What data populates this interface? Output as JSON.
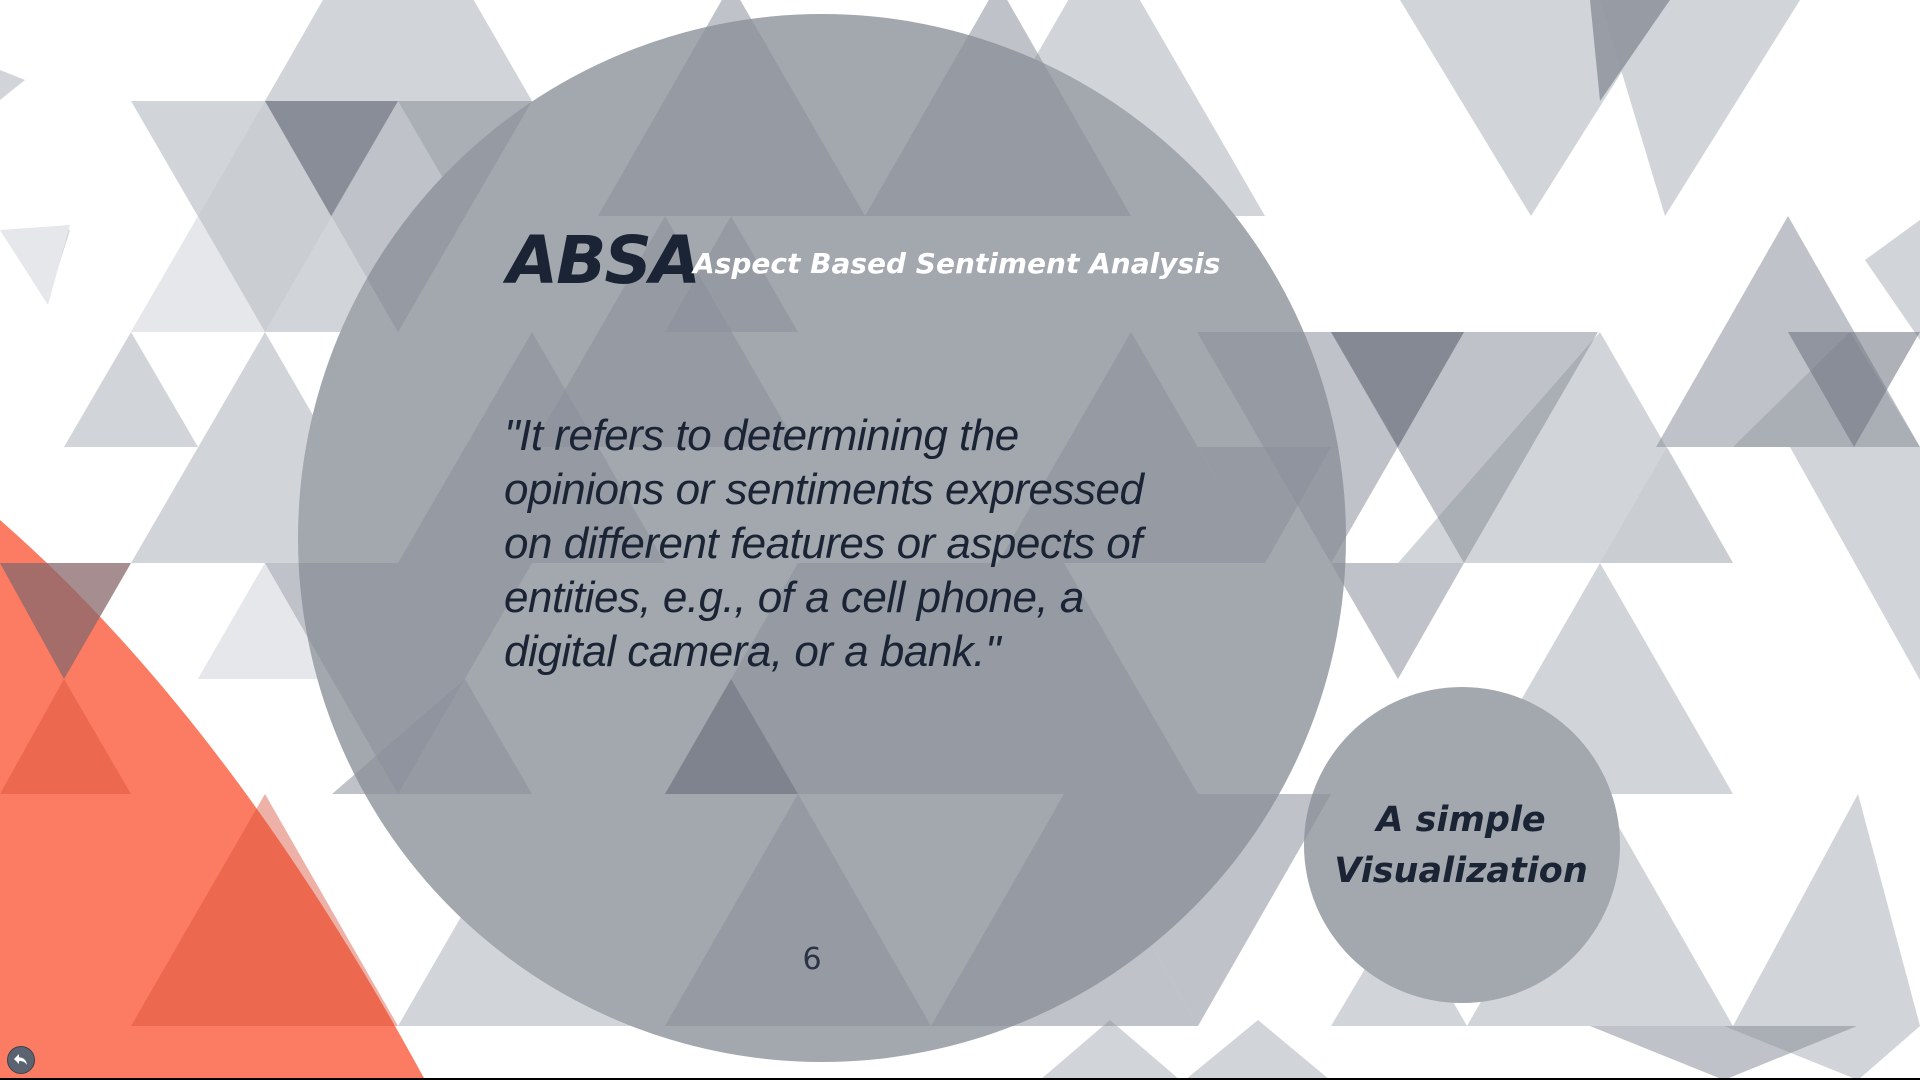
{
  "slide": {
    "title": "ABSA",
    "subtitle": "Aspect Based Sentiment Analysis",
    "quote": "\"It refers to determining the opinions or sentiments expressed on different features or aspects of entities, e.g., of a cell phone, a digital camera, or a bank.\"",
    "side_label": "A simple Visualization",
    "page_number": "6"
  },
  "controls": {
    "back_icon": "back-arrow-icon"
  },
  "colors": {
    "background": "#ffffff",
    "circle_fill": "#a3a7ae",
    "triangle_light": "#c9ccd1",
    "triangle_mid": "#8b909a",
    "triangle_dark": "#6b717d",
    "accent_coral": "#fb7c62",
    "text_dark": "#1a2434",
    "text_light": "#ffffff"
  }
}
